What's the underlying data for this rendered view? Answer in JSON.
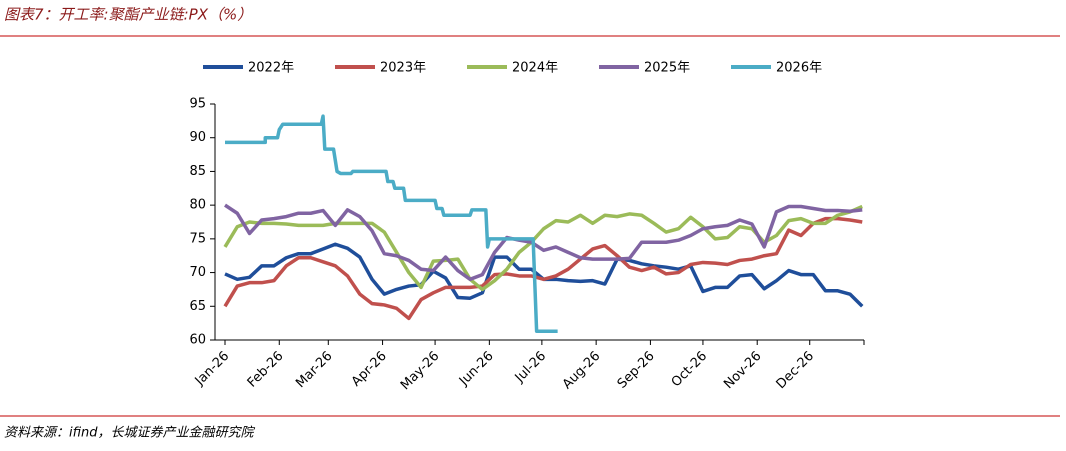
{
  "chart_data": {
    "type": "line",
    "title": "图表7：开工率:聚酯产业链:PX（%）",
    "source": "资料来源：ifind，长城证券产业金融研究院",
    "x": [
      0,
      7,
      14,
      21,
      28,
      35,
      42,
      49,
      56,
      63,
      70,
      77,
      84,
      91,
      98,
      105,
      112,
      119,
      126,
      133,
      140,
      147,
      154,
      161,
      168,
      175,
      182,
      189,
      196,
      203,
      210,
      217,
      224,
      231,
      238,
      245,
      252,
      259,
      266,
      273,
      280,
      287,
      294,
      301,
      308,
      315,
      322,
      329,
      336,
      343,
      350,
      357,
      364
    ],
    "xlim": [
      0,
      365
    ],
    "xticks": [
      {
        "value": 0,
        "label": "Jan-26"
      },
      {
        "value": 31,
        "label": "Feb-26"
      },
      {
        "value": 59,
        "label": "Mar-26"
      },
      {
        "value": 90,
        "label": "Apr-26"
      },
      {
        "value": 120,
        "label": "May-26"
      },
      {
        "value": 151,
        "label": "Jun-26"
      },
      {
        "value": 181,
        "label": "Jul-26"
      },
      {
        "value": 212,
        "label": "Aug-26"
      },
      {
        "value": 243,
        "label": "Sep-26"
      },
      {
        "value": 273,
        "label": "Oct-26"
      },
      {
        "value": 304,
        "label": "Nov-26"
      },
      {
        "value": 334,
        "label": "Dec-26"
      }
    ],
    "ylim": [
      60,
      95
    ],
    "yticks": [
      60,
      65,
      70,
      75,
      80,
      85,
      90,
      95
    ],
    "grid": false,
    "legend": "top",
    "series": [
      {
        "name": "2022年",
        "color": "#1f4e9a",
        "values": [
          69.8,
          69,
          69.3,
          71,
          71,
          72.2,
          72.8,
          72.8,
          73.5,
          74.2,
          73.6,
          72.3,
          69,
          66.8,
          67.5,
          68,
          68.2,
          70.2,
          69.2,
          66.3,
          66.2,
          67,
          72.3,
          72.3,
          70.5,
          70.5,
          69,
          69,
          68.8,
          68.7,
          68.8,
          68.3,
          72,
          71.8,
          71.3,
          71,
          70.8,
          70.5,
          71,
          67.2,
          67.8,
          67.8,
          69.5,
          69.7,
          67.6,
          68.8,
          70.3,
          69.7,
          69.7,
          67.3,
          67.3,
          66.8,
          65
        ]
      },
      {
        "name": "2023年",
        "color": "#c0504d",
        "values": [
          65,
          68,
          68.5,
          68.5,
          68.8,
          71,
          72.2,
          72.2,
          71.6,
          71,
          69.5,
          66.8,
          65.4,
          65.2,
          64.7,
          63.2,
          66,
          67,
          67.8,
          67.8,
          67.8,
          68,
          69.7,
          69.8,
          69.5,
          69.5,
          69,
          69.5,
          70.5,
          72,
          73.5,
          74,
          72.5,
          70.8,
          70.3,
          70.8,
          69.8,
          70,
          71.2,
          71.5,
          71.4,
          71.2,
          71.8,
          72,
          72.5,
          72.8,
          76.3,
          75.5,
          77.3,
          78,
          78,
          77.8,
          77.5
        ]
      },
      {
        "name": "2024年",
        "color": "#9bbb59",
        "values": [
          73.8,
          76.8,
          77.5,
          77.3,
          77.3,
          77.2,
          77,
          77,
          77,
          77.3,
          77.3,
          77.3,
          77.3,
          76,
          73,
          70,
          67.8,
          71.7,
          71.8,
          72,
          69,
          67.5,
          68.8,
          70.5,
          73,
          74.5,
          76.5,
          77.7,
          77.5,
          78.5,
          77.3,
          78.5,
          78.3,
          78.7,
          78.5,
          77.3,
          76,
          76.5,
          78.2,
          76.8,
          75,
          75.2,
          76.8,
          76.5,
          74.5,
          75.5,
          77.7,
          78,
          77.3,
          77.3,
          78.5,
          79,
          79.8
        ]
      },
      {
        "name": "2025年",
        "color": "#8064a2",
        "values": [
          80,
          78.8,
          75.8,
          77.8,
          78,
          78.3,
          78.8,
          78.8,
          79.2,
          77,
          79.3,
          78.3,
          76.2,
          72.8,
          72.5,
          71.8,
          70.5,
          70.3,
          72.3,
          70.3,
          69,
          69.7,
          73,
          75.2,
          74.8,
          74.5,
          73.3,
          73.8,
          73,
          72.2,
          72,
          72,
          72,
          72.1,
          74.5,
          74.5,
          74.5,
          74.8,
          75.5,
          76.5,
          76.8,
          77,
          77.8,
          77.2,
          73.8,
          79,
          79.8,
          79.8,
          79.5,
          79.2,
          79.2,
          79.1,
          79.3
        ]
      },
      {
        "name": "2026年",
        "color": "#4bacc6",
        "x": [
          0,
          23,
          23,
          30,
          31,
          33,
          55,
          56,
          57,
          62,
          64,
          66,
          72,
          73,
          92,
          93,
          96,
          97,
          102,
          103,
          120,
          121,
          124,
          125,
          140,
          141,
          149,
          150,
          151,
          176,
          178,
          190
        ],
        "values": [
          89.3,
          89.3,
          90,
          90,
          91.2,
          92,
          92,
          93.2,
          88.3,
          88.3,
          85,
          84.7,
          84.7,
          85,
          85,
          83.5,
          83.5,
          82.5,
          82.5,
          80.7,
          80.7,
          79.5,
          79.5,
          78.5,
          78.5,
          79.3,
          79.3,
          73.8,
          75,
          75,
          61.3,
          61.3
        ]
      }
    ]
  }
}
